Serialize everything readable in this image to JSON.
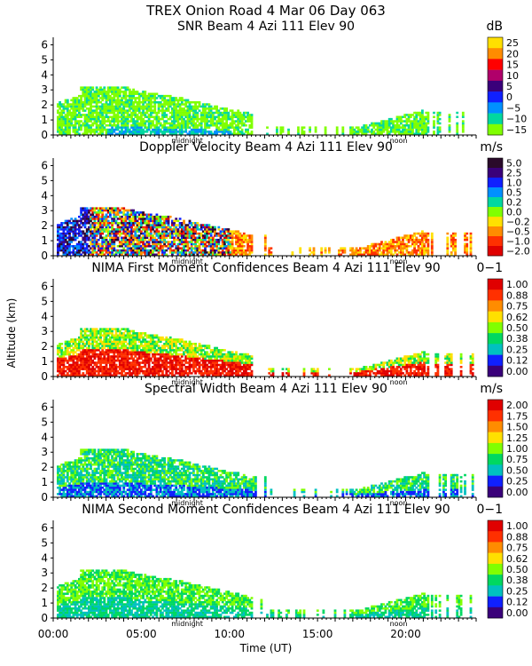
{
  "chart_data": {
    "type": "heatmap",
    "title": "TREX Onion Road    4 Mar 06 Day 063",
    "xlabel": "Time (UT)",
    "ylabel": "Altitude (km)",
    "x_ticks": [
      "00:00",
      "05:00",
      "10:00",
      "15:00",
      "20:00"
    ],
    "x_tick_hours": [
      0,
      5,
      10,
      15,
      20
    ],
    "xlim": [
      0,
      24
    ],
    "ylim": [
      0,
      6.5
    ],
    "y_ticks": [
      0,
      1,
      2,
      3,
      4,
      5,
      6
    ],
    "time_markers": [
      {
        "label": "midnight",
        "hour": 7.6
      },
      {
        "label": "noon",
        "hour": 19.6
      }
    ],
    "panels": [
      {
        "title": "SNR Beam 4 Azi 111 Elev 90",
        "unit": "dB",
        "scale_labels": [
          "25",
          "20",
          "15",
          "10",
          "5",
          "0",
          "−5",
          "−10",
          "−15"
        ],
        "colors": [
          "#ffe000",
          "#ff8c00",
          "#ff0000",
          "#b0006a",
          "#3a007a",
          "#1020ff",
          "#0090ff",
          "#00d8a0",
          "#80ff00"
        ],
        "fill": "snr"
      },
      {
        "title": "Doppler Velocity Beam 4 Azi 111 Elev 90",
        "unit": "m/s",
        "scale_labels": [
          "5.0",
          "2.5",
          "1.0",
          "0.5",
          "0.2",
          "0.0",
          "−0.2",
          "−0.5",
          "−1.0",
          "−2.0"
        ],
        "colors": [
          "#2a0a2a",
          "#3a007a",
          "#1020ff",
          "#0090ff",
          "#00d8a0",
          "#80ff00",
          "#ffe000",
          "#ff8c00",
          "#ff3000",
          "#e00000"
        ],
        "fill": "doppler"
      },
      {
        "title": "NIMA First Moment Confidences Beam 4 Azi 111 Elev 90",
        "unit": "0−1",
        "scale_labels": [
          "1.00",
          "0.88",
          "0.75",
          "0.62",
          "0.50",
          "0.38",
          "0.25",
          "0.12",
          "0.00"
        ],
        "colors": [
          "#e00000",
          "#ff3000",
          "#ff8c00",
          "#ffe000",
          "#80ff00",
          "#00d860",
          "#00c0c0",
          "#1020ff",
          "#3a007a"
        ],
        "fill": "conf1"
      },
      {
        "title": "Spectral Width Beam 4 Azi 111 Elev 90",
        "unit": "m/s",
        "scale_labels": [
          "2.00",
          "1.75",
          "1.50",
          "1.25",
          "1.00",
          "0.75",
          "0.50",
          "0.25",
          "0.00"
        ],
        "colors": [
          "#e00000",
          "#ff3000",
          "#ff8c00",
          "#ffe000",
          "#80ff00",
          "#00d860",
          "#00c0c0",
          "#1020ff",
          "#3a007a"
        ],
        "fill": "width"
      },
      {
        "title": "NIMA Second Moment Confidences Beam 4 Azi 111 Elev 90",
        "unit": "0−1",
        "scale_labels": [
          "1.00",
          "0.88",
          "0.75",
          "0.62",
          "0.50",
          "0.38",
          "0.25",
          "0.12",
          "0.00"
        ],
        "colors": [
          "#e00000",
          "#ff3000",
          "#ff8c00",
          "#ffe000",
          "#80ff00",
          "#00d860",
          "#00c0c0",
          "#1020ff",
          "#3a007a"
        ],
        "fill": "conf2"
      }
    ]
  }
}
